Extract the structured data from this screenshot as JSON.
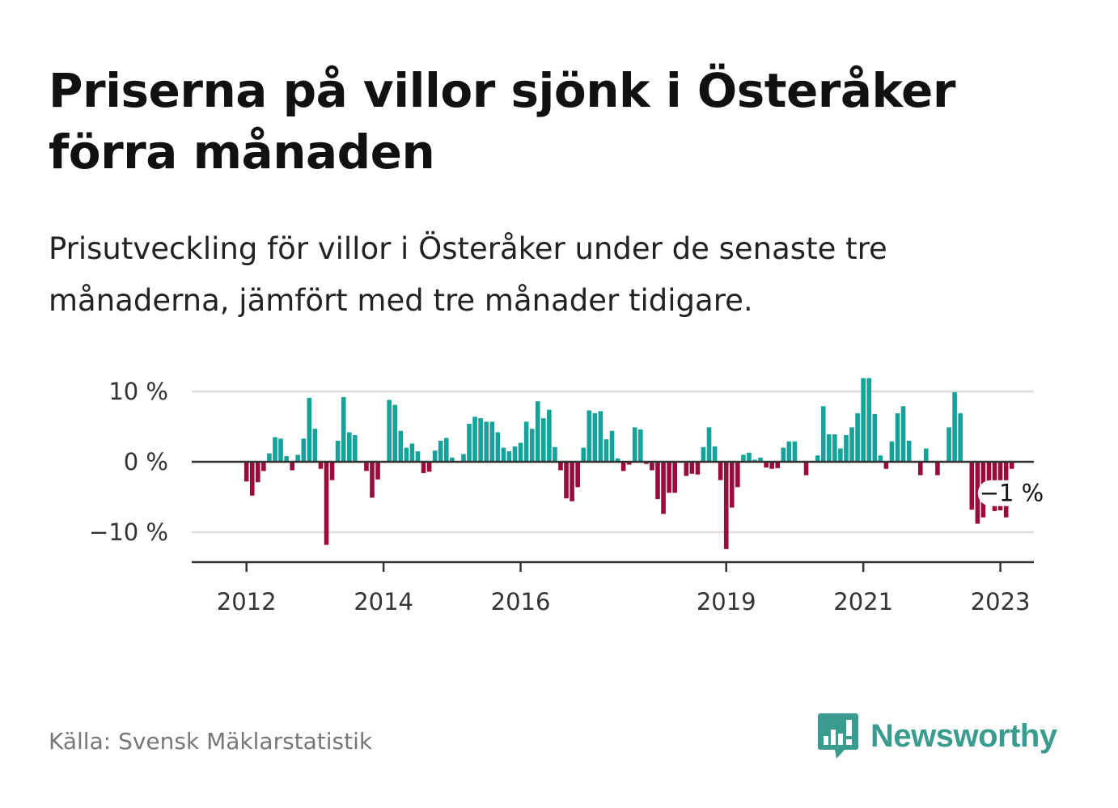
{
  "title": "Priserna på villor sjönk i Österåker förra månaden",
  "subtitle": "Prisutveckling för villor i Österåker under de senaste tre månaderna, jämfört med tre månader tidigare.",
  "source": "Källa: Svensk Mäklarstatistik",
  "logo": {
    "text": "Newsworthy",
    "icon": "bar-chart-speech-bubble-icon",
    "color": "#3a9b8f"
  },
  "colors": {
    "positive": "#13a39a",
    "negative": "#9a0a3c",
    "axis": "#333333",
    "grid": "#dddddd"
  },
  "chart_data": {
    "type": "bar",
    "title": "",
    "xlabel": "",
    "ylabel": "",
    "unit": "%",
    "ylim": [
      -14.3,
      12
    ],
    "yticks": [
      {
        "value": 10,
        "label": "10 %"
      },
      {
        "value": 0,
        "label": "0 %"
      },
      {
        "value": -10,
        "label": "−10 %"
      }
    ],
    "xticks": [
      {
        "date": "2012-01",
        "label": "2012"
      },
      {
        "date": "2014-01",
        "label": "2014"
      },
      {
        "date": "2016-01",
        "label": "2016"
      },
      {
        "date": "2019-01",
        "label": "2019"
      },
      {
        "date": "2021-01",
        "label": "2021"
      },
      {
        "date": "2023-01",
        "label": "2023"
      }
    ],
    "start": "2011-10",
    "end": "2023-03",
    "annotation": {
      "date": "2023-03",
      "text": "−1 %"
    },
    "series": [
      {
        "values": [
          null,
          null,
          null,
          -2.8,
          -4.8,
          -2.9,
          -1.3,
          1.2,
          3.5,
          3.3,
          0.8,
          -1.2,
          1.0,
          3.3,
          9.1,
          4.7,
          -1.0,
          -11.8,
          -2.6,
          3.0,
          9.2,
          4.2,
          3.8,
          0.0,
          -1.3,
          -5.1,
          -2.5,
          0.0,
          8.8,
          8.1,
          4.4,
          2.0,
          2.6,
          1.5,
          -1.6,
          -1.4,
          1.6,
          3.0,
          3.4,
          0.6,
          0.0,
          1.1,
          5.4,
          6.4,
          6.2,
          5.7,
          5.7,
          4.2,
          2.0,
          1.5,
          2.2,
          2.7,
          5.7,
          4.7,
          8.6,
          6.2,
          7.4,
          2.1,
          -1.2,
          -5.2,
          -5.6,
          -3.6,
          2.0,
          7.3,
          6.9,
          7.2,
          3.2,
          4.4,
          0.5,
          -1.3,
          -0.4,
          4.9,
          4.6,
          -0.3,
          -1.2,
          -5.3,
          -7.4,
          -4.4,
          -4.4,
          -0.1,
          -2.0,
          -1.7,
          -1.8,
          2.1,
          4.9,
          2.2,
          -2.6,
          -12.4,
          -6.5,
          -3.6,
          1.0,
          1.3,
          0.3,
          0.6,
          -0.8,
          -1.0,
          -0.9,
          2.0,
          2.9,
          2.9,
          0.0,
          -1.9,
          0.0,
          0.9,
          7.9,
          3.9,
          3.9,
          1.9,
          3.8,
          4.9,
          6.9,
          11.9,
          11.9,
          6.8,
          0.9,
          -1.0,
          2.9,
          6.9,
          7.9,
          3.0,
          0.0,
          -1.9,
          1.9,
          0.0,
          -1.9,
          0.0,
          4.9,
          9.9,
          6.9,
          0.0,
          -6.8,
          -8.8,
          -7.9,
          -6.0,
          -7.0,
          -6.9,
          -7.9,
          -1.0
        ]
      }
    ]
  }
}
